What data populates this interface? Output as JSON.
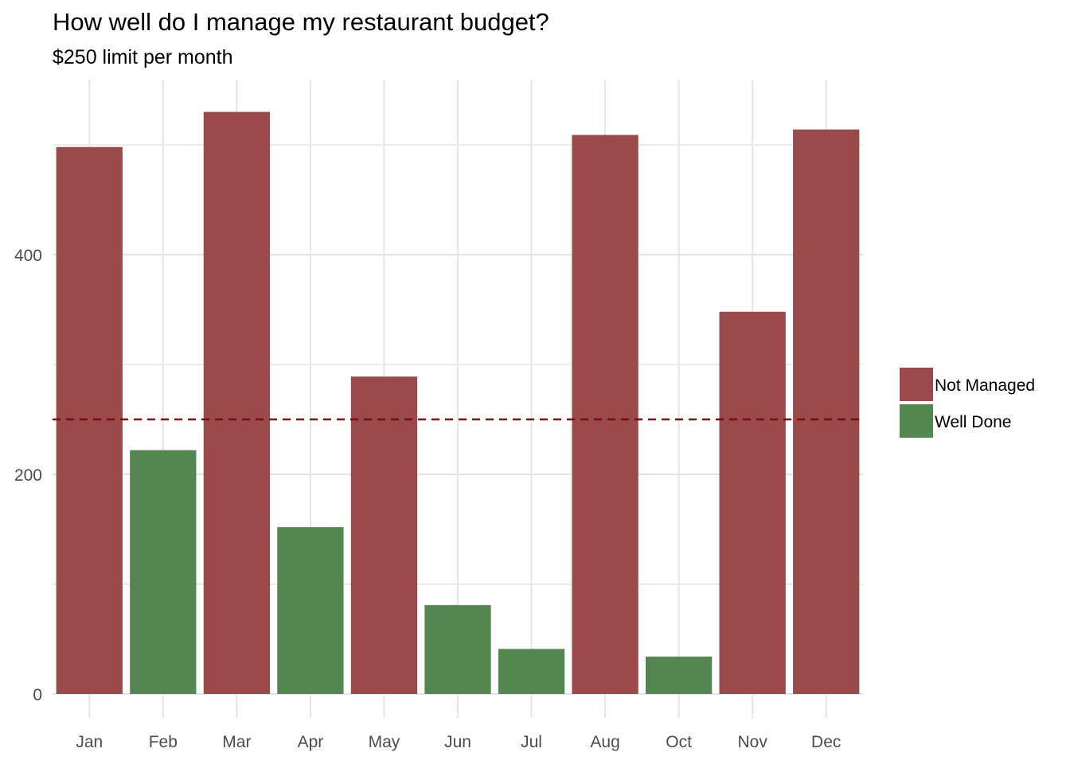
{
  "chart_data": {
    "type": "bar",
    "title": "How well do I manage my restaurant budget?",
    "subtitle": "$250 limit per month",
    "xlabel": "",
    "ylabel": "",
    "categories": [
      "Jan",
      "Feb",
      "Mar",
      "Apr",
      "May",
      "Jun",
      "Jul",
      "Aug",
      "Oct",
      "Nov",
      "Dec"
    ],
    "values": [
      498,
      222,
      530,
      152,
      289,
      81,
      41,
      509,
      34,
      348,
      514
    ],
    "status": [
      "Not Managed",
      "Well Done",
      "Not Managed",
      "Well Done",
      "Not Managed",
      "Well Done",
      "Well Done",
      "Not Managed",
      "Well Done",
      "Not Managed",
      "Not Managed"
    ],
    "ylim": [
      0,
      540
    ],
    "y_ticks": [
      0,
      200,
      400
    ],
    "y_tick_labels": [
      "0",
      "200",
      "400"
    ],
    "reference_line": {
      "value": 250,
      "style": "dashed",
      "color": "#8b0000"
    },
    "colors": {
      "Not Managed": "#9a4a4b",
      "Well Done": "#54874f"
    },
    "legend": {
      "placement": "right",
      "entries": [
        "Not Managed",
        "Well Done"
      ]
    },
    "grid": true
  }
}
